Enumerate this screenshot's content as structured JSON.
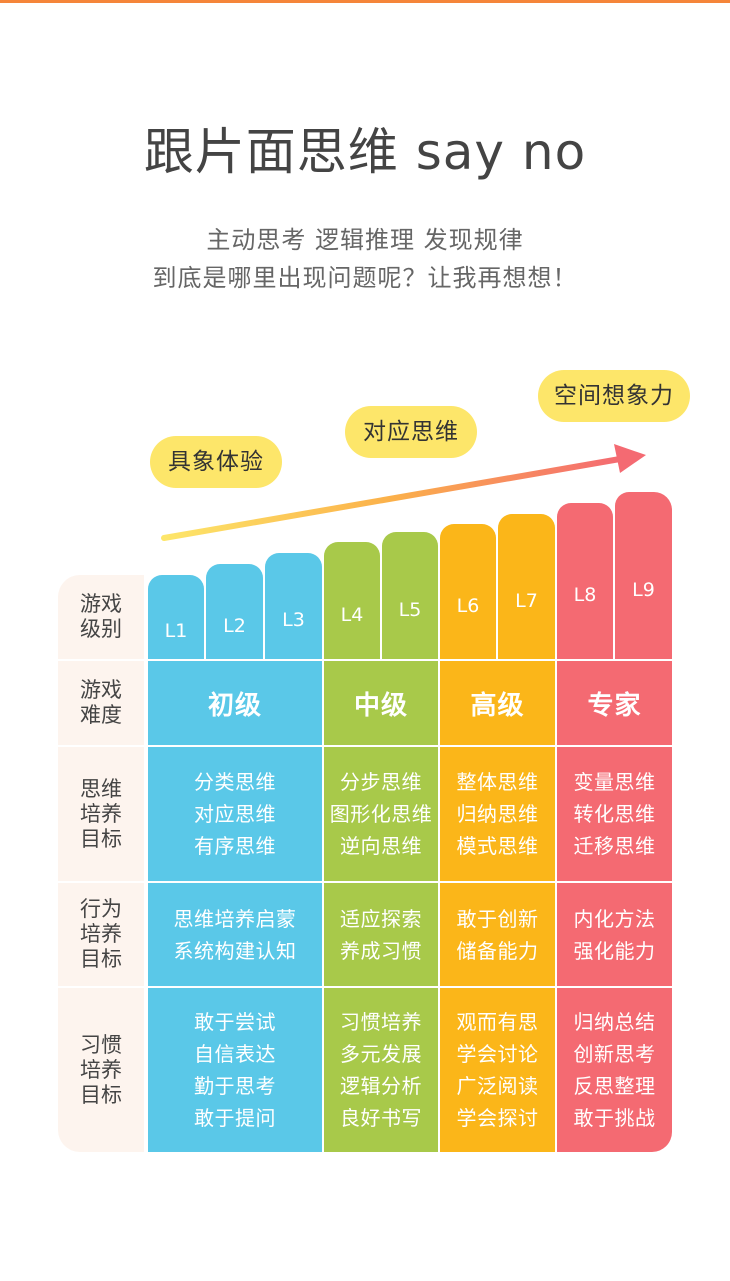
{
  "header": {
    "title": "跟片面思维 say no",
    "subtitle_line1": "主动思考 逻辑推理 发现规律",
    "subtitle_line2": "到底是哪里出现问题呢？让我再想想！"
  },
  "stages": [
    "具象体验",
    "对应思维",
    "空间想象力"
  ],
  "row_labels": [
    "游戏级别",
    "游戏难度",
    "思维培养目标",
    "行为培养目标",
    "习惯培养目标"
  ],
  "levels": [
    "L1",
    "L2",
    "L3",
    "L4",
    "L5",
    "L6",
    "L7",
    "L8",
    "L9"
  ],
  "groups": [
    {
      "difficulty": "初级",
      "thinking": [
        "分类思维",
        "对应思维",
        "有序思维"
      ],
      "behavior": [
        "思维培养启蒙",
        "系统构建认知"
      ],
      "habit": [
        "敢于尝试",
        "自信表达",
        "勤于思考",
        "敢于提问"
      ]
    },
    {
      "difficulty": "中级",
      "thinking": [
        "分步思维",
        "图形化思维",
        "逆向思维"
      ],
      "behavior": [
        "适应探索",
        "养成习惯"
      ],
      "habit": [
        "习惯培养",
        "多元发展",
        "逻辑分析",
        "良好书写"
      ]
    },
    {
      "difficulty": "高级",
      "thinking": [
        "整体思维",
        "归纳思维",
        "模式思维"
      ],
      "behavior": [
        "敢于创新",
        "储备能力"
      ],
      "habit": [
        "观而有思",
        "学会讨论",
        "广泛阅读",
        "学会探讨"
      ]
    },
    {
      "difficulty": "专家",
      "thinking": [
        "变量思维",
        "转化思维",
        "迁移思维"
      ],
      "behavior": [
        "内化方法",
        "强化能力"
      ],
      "habit": [
        "归纳总结",
        "创新思考",
        "反思整理",
        "敢于挑战"
      ]
    }
  ],
  "colors": {
    "blue": "#5ac8e8",
    "green": "#a8c94a",
    "orange": "#fbb619",
    "red": "#f46a72",
    "pill": "#fde66a"
  }
}
